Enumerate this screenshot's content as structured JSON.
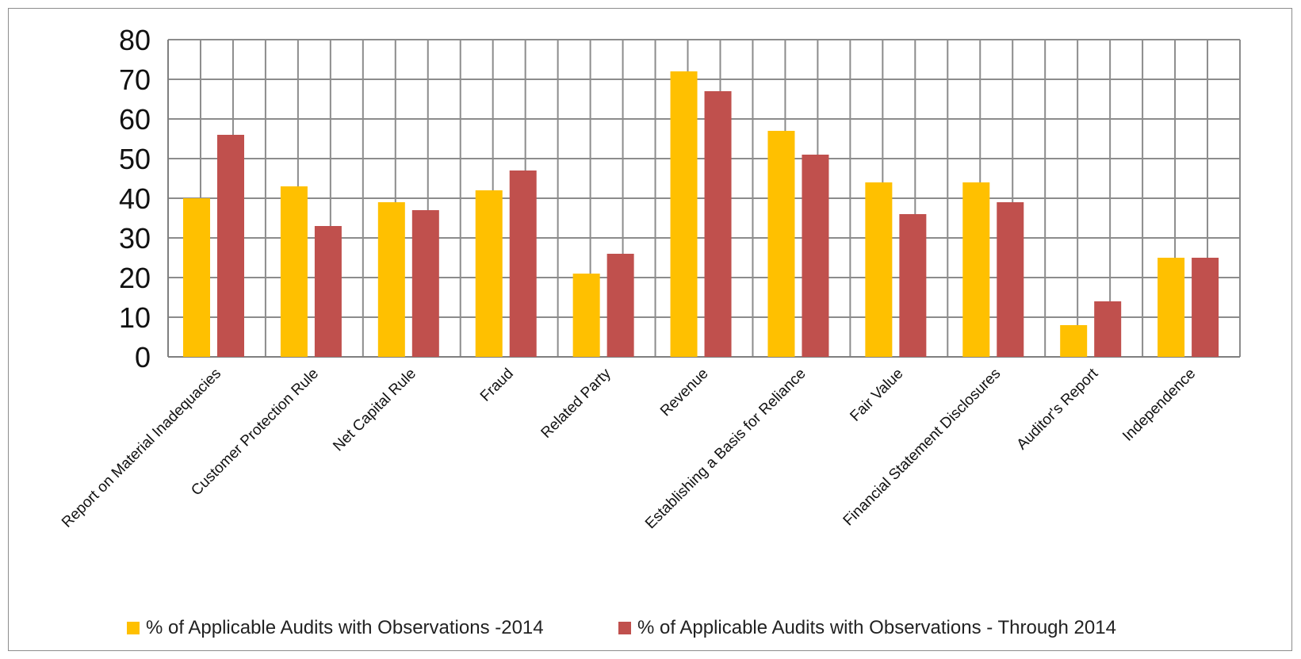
{
  "chart_data": {
    "type": "bar",
    "categories": [
      "Report on Material Inadequacies",
      "Customer Protection Rule",
      "Net Capital Rule",
      "Fraud",
      "Related Party",
      "Revenue",
      "Establishing a Basis for Reliance",
      "Fair Value",
      "Financial Statement Disclosures",
      "Auditor's Report",
      "Independence"
    ],
    "series": [
      {
        "name": "%  of Applicable Audits with Observations -2014",
        "color": "#FFC000",
        "values": [
          40,
          43,
          39,
          42,
          21,
          72,
          57,
          44,
          44,
          8,
          25
        ]
      },
      {
        "name": "%  of Applicable Audits with Observations - Through 2014",
        "color": "#C0504D",
        "values": [
          56,
          33,
          37,
          47,
          26,
          67,
          51,
          36,
          39,
          14,
          25
        ]
      }
    ],
    "ylim": [
      0,
      80
    ],
    "yticks": [
      "0",
      "10",
      "20",
      "30",
      "40",
      "50",
      "60",
      "70",
      "80"
    ],
    "grid": true,
    "legend_position": "bottom"
  }
}
